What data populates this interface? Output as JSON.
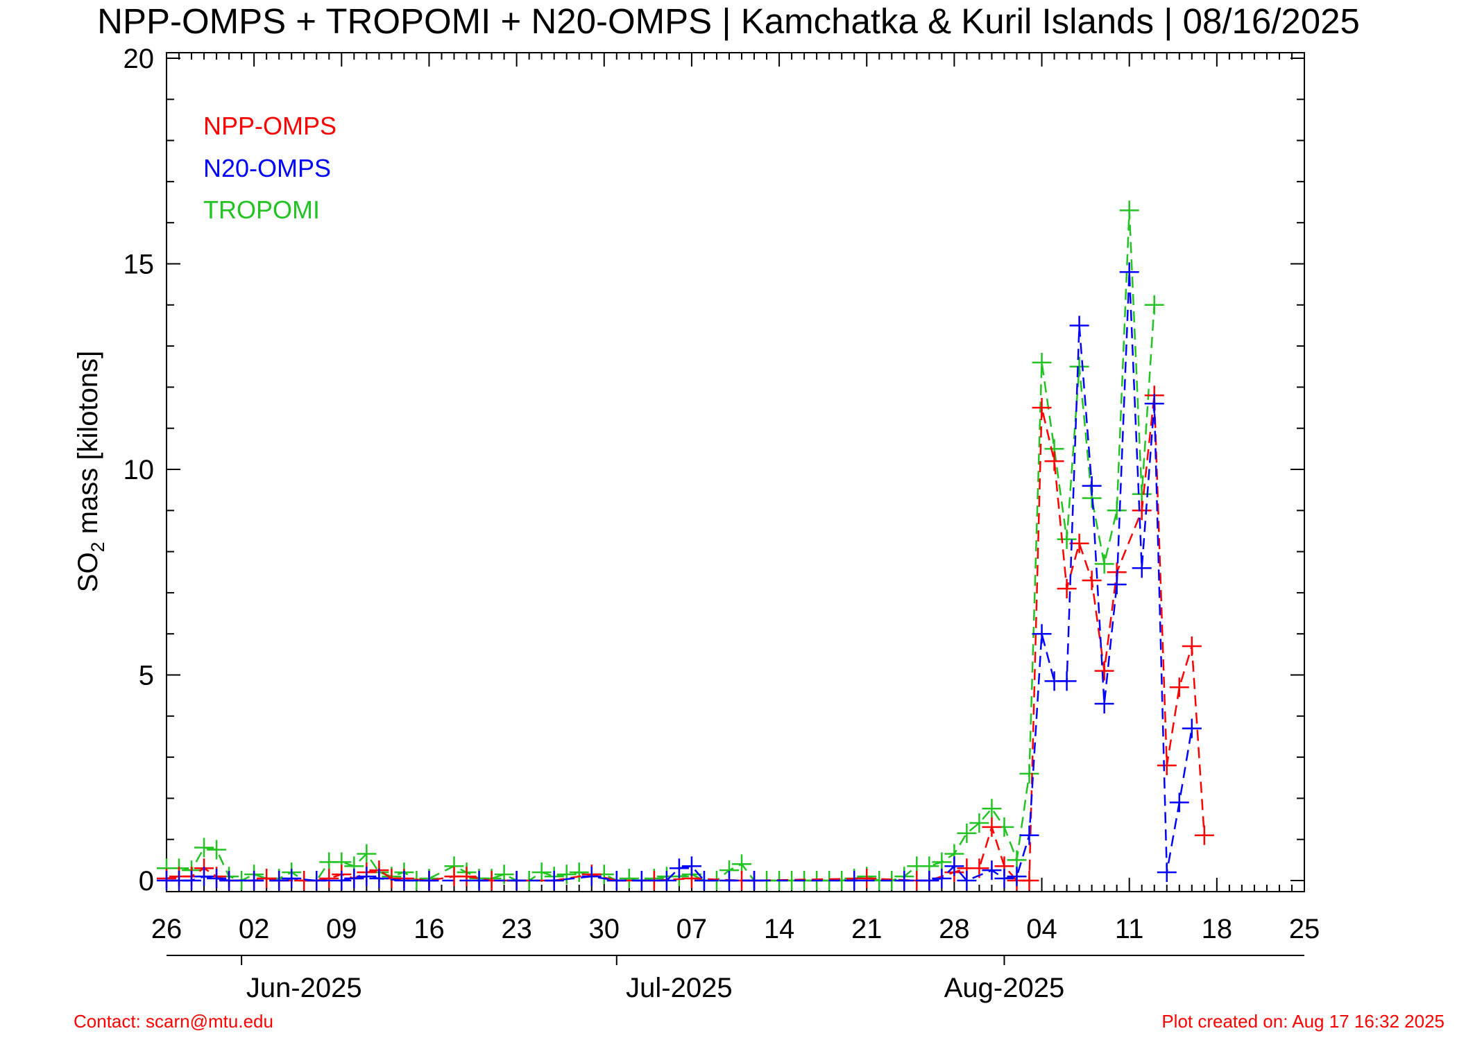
{
  "chart_data": {
    "type": "line",
    "title": "NPP-OMPS + TROPOMI + N20-OMPS | Kamchatka & Kuril Islands | 08/16/2025",
    "ylabel": "SO2 mass [kilotons]",
    "ylabel_main": "SO",
    "ylabel_sub": "2",
    "ylabel_rest": " mass [kilotons]",
    "xlabel": "",
    "xlim": [
      "2025-05-26",
      "2025-08-25"
    ],
    "ylim": [
      0,
      20
    ],
    "yticks": [
      0,
      5,
      10,
      15,
      20
    ],
    "yticks_minor_step": 1,
    "xtick_labels": [
      {
        "date": "2025-05-26",
        "label": "26"
      },
      {
        "date": "2025-06-02",
        "label": "02"
      },
      {
        "date": "2025-06-09",
        "label": "09"
      },
      {
        "date": "2025-06-16",
        "label": "16"
      },
      {
        "date": "2025-06-23",
        "label": "23"
      },
      {
        "date": "2025-06-30",
        "label": "30"
      },
      {
        "date": "2025-07-07",
        "label": "07"
      },
      {
        "date": "2025-07-14",
        "label": "14"
      },
      {
        "date": "2025-07-21",
        "label": "21"
      },
      {
        "date": "2025-07-28",
        "label": "28"
      },
      {
        "date": "2025-08-04",
        "label": "04"
      },
      {
        "date": "2025-08-11",
        "label": "11"
      },
      {
        "date": "2025-08-18",
        "label": "18"
      },
      {
        "date": "2025-08-25",
        "label": "25"
      }
    ],
    "month_labels": [
      {
        "label": "Jun-2025",
        "center": "2025-06-06",
        "tick": "2025-06-01"
      },
      {
        "label": "Jul-2025",
        "center": "2025-07-06",
        "tick": "2025-07-01"
      },
      {
        "label": "Aug-2025",
        "center": "2025-08-01",
        "tick": "2025-08-01"
      }
    ],
    "grid": false,
    "legend_position": "top-left",
    "series": [
      {
        "name": "NPP-OMPS",
        "color": "#ff0000",
        "marker": "plus",
        "line": "dashed",
        "points": [
          [
            "2025-05-26",
            0.05
          ],
          [
            "2025-05-27",
            0.1
          ],
          [
            "2025-05-28",
            0.1
          ],
          [
            "2025-05-29",
            0.3
          ],
          [
            "2025-05-30",
            0.1
          ],
          [
            "2025-05-31",
            0.0
          ],
          [
            "2025-06-02",
            0.0
          ],
          [
            "2025-06-03",
            0.05
          ],
          [
            "2025-06-04",
            0.0
          ],
          [
            "2025-06-06",
            0.0
          ],
          [
            "2025-06-07",
            0.0
          ],
          [
            "2025-06-08",
            0.05
          ],
          [
            "2025-06-09",
            0.15
          ],
          [
            "2025-06-10",
            0.05
          ],
          [
            "2025-06-11",
            0.2
          ],
          [
            "2025-06-12",
            0.25
          ],
          [
            "2025-06-13",
            0.05
          ],
          [
            "2025-06-14",
            0.05
          ],
          [
            "2025-06-16",
            0.0
          ],
          [
            "2025-06-18",
            0.1
          ],
          [
            "2025-06-19",
            0.1
          ],
          [
            "2025-06-21",
            0.0
          ],
          [
            "2025-06-23",
            0.0
          ],
          [
            "2025-06-26",
            0.0
          ],
          [
            "2025-06-29",
            0.15
          ],
          [
            "2025-07-01",
            0.0
          ],
          [
            "2025-07-04",
            0.0
          ],
          [
            "2025-07-07",
            0.05
          ],
          [
            "2025-07-11",
            0.0
          ],
          [
            "2025-07-12",
            0.0
          ],
          [
            "2025-07-21",
            0.05
          ],
          [
            "2025-07-25",
            0.0
          ],
          [
            "2025-07-26",
            0.0
          ],
          [
            "2025-07-28",
            0.2
          ],
          [
            "2025-07-29",
            0.3
          ],
          [
            "2025-07-30",
            0.3
          ],
          [
            "2025-07-31",
            1.3
          ],
          [
            "2025-08-01",
            0.35
          ],
          [
            "2025-08-02",
            0.0
          ],
          [
            "2025-08-03",
            0.0
          ],
          [
            "2025-08-04",
            11.5
          ],
          [
            "2025-08-05",
            10.2
          ],
          [
            "2025-08-06",
            7.1
          ],
          [
            "2025-08-07",
            8.2
          ],
          [
            "2025-08-08",
            7.3
          ],
          [
            "2025-08-09",
            5.1
          ],
          [
            "2025-08-10",
            7.5
          ],
          [
            "2025-08-12",
            9.0
          ],
          [
            "2025-08-13",
            11.8
          ],
          [
            "2025-08-14",
            2.8
          ],
          [
            "2025-08-15",
            4.7
          ],
          [
            "2025-08-16",
            5.7
          ],
          [
            "2025-08-17",
            1.1
          ]
        ]
      },
      {
        "name": "N20-OMPS",
        "color": "#0000ff",
        "marker": "plus",
        "line": "dashed",
        "points": [
          [
            "2025-05-26",
            0.0
          ],
          [
            "2025-05-27",
            0.0
          ],
          [
            "2025-05-28",
            0.0
          ],
          [
            "2025-05-29",
            0.1
          ],
          [
            "2025-05-30",
            0.05
          ],
          [
            "2025-05-31",
            0.0
          ],
          [
            "2025-06-02",
            0.0
          ],
          [
            "2025-06-04",
            0.0
          ],
          [
            "2025-06-05",
            0.05
          ],
          [
            "2025-06-07",
            0.0
          ],
          [
            "2025-06-09",
            0.0
          ],
          [
            "2025-06-10",
            0.05
          ],
          [
            "2025-06-11",
            0.1
          ],
          [
            "2025-06-12",
            0.05
          ],
          [
            "2025-06-14",
            0.0
          ],
          [
            "2025-06-16",
            0.0
          ],
          [
            "2025-06-20",
            0.0
          ],
          [
            "2025-06-23",
            0.0
          ],
          [
            "2025-06-26",
            0.0
          ],
          [
            "2025-06-29",
            0.1
          ],
          [
            "2025-07-01",
            0.0
          ],
          [
            "2025-07-03",
            0.0
          ],
          [
            "2025-07-05",
            0.0
          ],
          [
            "2025-07-06",
            0.3
          ],
          [
            "2025-07-07",
            0.35
          ],
          [
            "2025-07-08",
            0.0
          ],
          [
            "2025-07-10",
            0.0
          ],
          [
            "2025-07-12",
            0.0
          ],
          [
            "2025-07-20",
            0.0
          ],
          [
            "2025-07-24",
            0.0
          ],
          [
            "2025-07-26",
            0.0
          ],
          [
            "2025-07-27",
            0.05
          ],
          [
            "2025-07-28",
            0.35
          ],
          [
            "2025-07-29",
            0.0
          ],
          [
            "2025-07-31",
            0.25
          ],
          [
            "2025-08-01",
            0.05
          ],
          [
            "2025-08-02",
            0.1
          ],
          [
            "2025-08-03",
            1.1
          ],
          [
            "2025-08-04",
            6.0
          ],
          [
            "2025-08-05",
            4.85
          ],
          [
            "2025-08-06",
            4.85
          ],
          [
            "2025-08-07",
            13.5
          ],
          [
            "2025-08-08",
            9.6
          ],
          [
            "2025-08-09",
            4.3
          ],
          [
            "2025-08-10",
            7.2
          ],
          [
            "2025-08-11",
            14.8
          ],
          [
            "2025-08-12",
            7.6
          ],
          [
            "2025-08-13",
            11.6
          ],
          [
            "2025-08-14",
            0.2
          ],
          [
            "2025-08-15",
            1.9
          ],
          [
            "2025-08-16",
            3.7
          ]
        ]
      },
      {
        "name": "TROPOMI",
        "color": "#22c322",
        "marker": "plus",
        "line": "dashed",
        "points": [
          [
            "2025-05-26",
            0.3
          ],
          [
            "2025-05-27",
            0.3
          ],
          [
            "2025-05-28",
            0.25
          ],
          [
            "2025-05-29",
            0.8
          ],
          [
            "2025-05-30",
            0.75
          ],
          [
            "2025-05-31",
            0.1
          ],
          [
            "2025-06-01",
            0.0
          ],
          [
            "2025-06-02",
            0.15
          ],
          [
            "2025-06-03",
            0.05
          ],
          [
            "2025-06-04",
            0.05
          ],
          [
            "2025-06-05",
            0.2
          ],
          [
            "2025-06-06",
            0.0
          ],
          [
            "2025-06-07",
            0.0
          ],
          [
            "2025-06-08",
            0.45
          ],
          [
            "2025-06-09",
            0.45
          ],
          [
            "2025-06-10",
            0.35
          ],
          [
            "2025-06-11",
            0.65
          ],
          [
            "2025-06-12",
            0.2
          ],
          [
            "2025-06-13",
            0.1
          ],
          [
            "2025-06-14",
            0.2
          ],
          [
            "2025-06-15",
            0.0
          ],
          [
            "2025-06-16",
            0.05
          ],
          [
            "2025-06-18",
            0.35
          ],
          [
            "2025-06-19",
            0.2
          ],
          [
            "2025-06-20",
            0.05
          ],
          [
            "2025-06-21",
            0.05
          ],
          [
            "2025-06-22",
            0.15
          ],
          [
            "2025-06-23",
            0.0
          ],
          [
            "2025-06-24",
            0.0
          ],
          [
            "2025-06-25",
            0.2
          ],
          [
            "2025-06-26",
            0.1
          ],
          [
            "2025-06-27",
            0.15
          ],
          [
            "2025-06-28",
            0.2
          ],
          [
            "2025-06-29",
            0.15
          ],
          [
            "2025-06-30",
            0.15
          ],
          [
            "2025-07-01",
            0.0
          ],
          [
            "2025-07-02",
            0.05
          ],
          [
            "2025-07-03",
            0.0
          ],
          [
            "2025-07-04",
            0.05
          ],
          [
            "2025-07-05",
            0.1
          ],
          [
            "2025-07-06",
            0.1
          ],
          [
            "2025-07-07",
            0.15
          ],
          [
            "2025-07-08",
            0.0
          ],
          [
            "2025-07-09",
            0.0
          ],
          [
            "2025-07-10",
            0.25
          ],
          [
            "2025-07-11",
            0.4
          ],
          [
            "2025-07-12",
            0.0
          ],
          [
            "2025-07-13",
            0.0
          ],
          [
            "2025-07-14",
            0.0
          ],
          [
            "2025-07-15",
            0.0
          ],
          [
            "2025-07-16",
            0.0
          ],
          [
            "2025-07-17",
            0.0
          ],
          [
            "2025-07-18",
            0.0
          ],
          [
            "2025-07-19",
            0.0
          ],
          [
            "2025-07-20",
            0.05
          ],
          [
            "2025-07-21",
            0.1
          ],
          [
            "2025-07-22",
            0.0
          ],
          [
            "2025-07-23",
            0.0
          ],
          [
            "2025-07-24",
            0.1
          ],
          [
            "2025-07-25",
            0.35
          ],
          [
            "2025-07-26",
            0.35
          ],
          [
            "2025-07-27",
            0.45
          ],
          [
            "2025-07-28",
            0.65
          ],
          [
            "2025-07-29",
            1.15
          ],
          [
            "2025-07-30",
            1.4
          ],
          [
            "2025-07-31",
            1.75
          ],
          [
            "2025-08-01",
            1.3
          ],
          [
            "2025-08-02",
            0.5
          ],
          [
            "2025-08-03",
            2.6
          ],
          [
            "2025-08-04",
            12.6
          ],
          [
            "2025-08-05",
            10.5
          ],
          [
            "2025-08-06",
            8.3
          ],
          [
            "2025-08-07",
            12.5
          ],
          [
            "2025-08-08",
            9.3
          ],
          [
            "2025-08-09",
            7.7
          ],
          [
            "2025-08-10",
            9.0
          ],
          [
            "2025-08-11",
            16.3
          ],
          [
            "2025-08-12",
            9.4
          ],
          [
            "2025-08-13",
            14.0
          ]
        ]
      }
    ]
  },
  "footer": {
    "contact": "Contact: scarn@mtu.edu",
    "created": "Plot created on: Aug 17 16:32 2025"
  }
}
